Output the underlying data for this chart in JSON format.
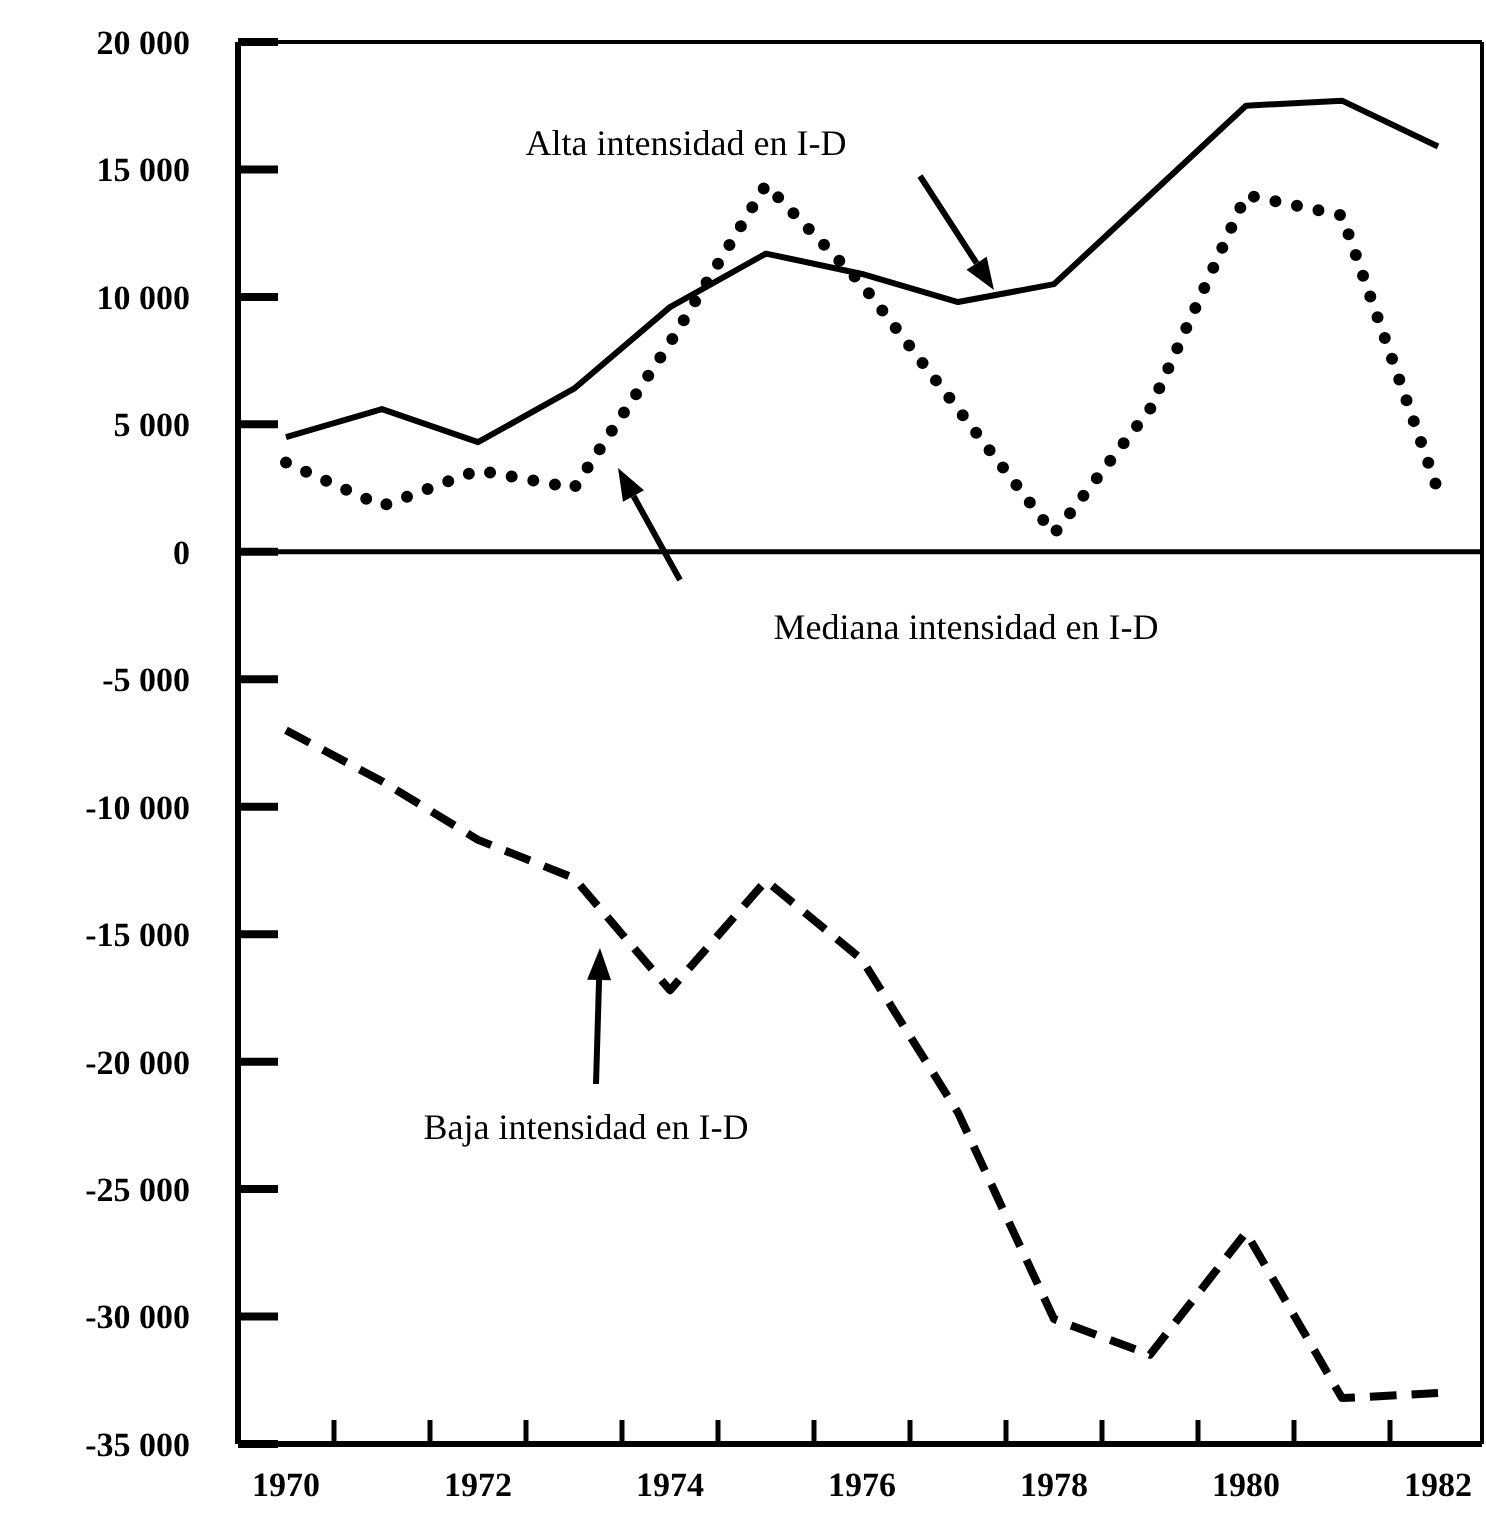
{
  "chart_data": {
    "type": "line",
    "x": [
      1970,
      1971,
      1972,
      1973,
      1974,
      1975,
      1976,
      1977,
      1978,
      1979,
      1980,
      1981,
      1982
    ],
    "series": [
      {
        "color": "#000000",
        "line_style": "solid",
        "values": [
          4500,
          5600,
          4300,
          6400,
          9600,
          11700,
          10900,
          9800,
          10500,
          14000,
          17500,
          17700,
          15900
        ]
      },
      {
        "color": "#000000",
        "line_style": "dotted",
        "values": [
          3500,
          1800,
          3200,
          2500,
          8200,
          14400,
          10500,
          5600,
          700,
          5600,
          14000,
          13200,
          2400
        ]
      },
      {
        "color": "#000000",
        "line_style": "dashed",
        "values": [
          -7000,
          -9000,
          -11300,
          -12800,
          -17200,
          -12900,
          -16000,
          -22000,
          -30100,
          -31500,
          -26700,
          -33200,
          -33000
        ]
      }
    ],
    "xlim": [
      1969.5,
      1982.5
    ],
    "xticks": [
      {
        "value": 1970,
        "label": "1970"
      },
      {
        "value": 1970.5,
        "label": null
      },
      {
        "value": 1971.5,
        "label": null
      },
      {
        "value": 1972,
        "label": "1972"
      },
      {
        "value": 1972.5,
        "label": null
      },
      {
        "value": 1973.5,
        "label": null
      },
      {
        "value": 1974,
        "label": "1974"
      },
      {
        "value": 1974.5,
        "label": null
      },
      {
        "value": 1975.5,
        "label": null
      },
      {
        "value": 1976,
        "label": "1976"
      },
      {
        "value": 1976.5,
        "label": null
      },
      {
        "value": 1977.5,
        "label": null
      },
      {
        "value": 1978,
        "label": "1978"
      },
      {
        "value": 1978.5,
        "label": null
      },
      {
        "value": 1979.5,
        "label": null
      },
      {
        "value": 1980,
        "label": "1980"
      },
      {
        "value": 1980.5,
        "label": null
      },
      {
        "value": 1981.5,
        "label": null
      },
      {
        "value": 1982,
        "label": "1982"
      }
    ],
    "ylim": [
      -35000,
      20000
    ],
    "yticks": [
      {
        "value": 20000,
        "label": "20 000"
      },
      {
        "value": 15000,
        "label": "15 000"
      },
      {
        "value": 10000,
        "label": "10 000"
      },
      {
        "value": 5000,
        "label": "5 000"
      },
      {
        "value": 0,
        "label": "0"
      },
      {
        "value": -5000,
        "label": "-5 000"
      },
      {
        "value": -10000,
        "label": "-10 000"
      },
      {
        "value": -15000,
        "label": "-15 000"
      },
      {
        "value": -20000,
        "label": "-20 000"
      },
      {
        "value": -25000,
        "label": "-25 000"
      },
      {
        "value": -30000,
        "label": "-30 000"
      },
      {
        "value": -35000,
        "label": "-35 000"
      }
    ],
    "ref_lines": [
      {
        "axis": "y",
        "value": 0,
        "color": "#000000"
      }
    ],
    "annotations": [
      "Alta intensidad en I-D",
      "Mediana intensidad en I-D",
      "Baja intensidad en I-D"
    ],
    "grid": false
  }
}
